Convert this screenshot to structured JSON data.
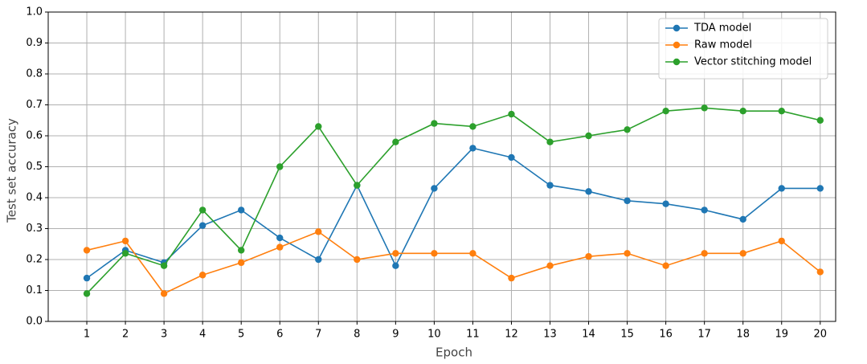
{
  "chart_data": {
    "type": "line",
    "x_label": "Epoch",
    "y_label": "Test set accuracy",
    "x": [
      1,
      2,
      3,
      4,
      5,
      6,
      7,
      8,
      9,
      10,
      11,
      12,
      13,
      14,
      15,
      16,
      17,
      18,
      19,
      20
    ],
    "series": [
      {
        "name": "TDA model",
        "color": "#1f77b4",
        "values": [
          0.14,
          0.23,
          0.19,
          0.31,
          0.36,
          0.27,
          0.2,
          0.44,
          0.18,
          0.43,
          0.56,
          0.53,
          0.44,
          0.42,
          0.39,
          0.38,
          0.36,
          0.33,
          0.43,
          0.43
        ]
      },
      {
        "name": "Raw model",
        "color": "#ff7f0e",
        "values": [
          0.23,
          0.26,
          0.09,
          0.15,
          0.19,
          0.24,
          0.29,
          0.2,
          0.22,
          0.22,
          0.22,
          0.14,
          0.18,
          0.21,
          0.22,
          0.18,
          0.22,
          0.22,
          0.26,
          0.16
        ]
      },
      {
        "name": "Vector stitching model",
        "color": "#2ca02c",
        "values": [
          0.09,
          0.22,
          0.18,
          0.36,
          0.23,
          0.5,
          0.63,
          0.44,
          0.58,
          0.64,
          0.63,
          0.67,
          0.58,
          0.6,
          0.62,
          0.68,
          0.69,
          0.68,
          0.68,
          0.65
        ]
      }
    ],
    "xlim": [
      0,
      20.4
    ],
    "xticks": [
      1,
      2,
      3,
      4,
      5,
      6,
      7,
      8,
      9,
      10,
      11,
      12,
      13,
      14,
      15,
      16,
      17,
      18,
      19,
      20
    ],
    "ylim": [
      0,
      1
    ],
    "yticks": [
      {
        "value": 0,
        "label": "0.0"
      },
      0.1,
      0.2,
      0.3,
      0.4,
      0.5,
      0.6,
      0.7,
      0.8,
      0.9,
      {
        "value": 1,
        "label": "1.0"
      }
    ],
    "grid": true,
    "legend": "upper right"
  }
}
